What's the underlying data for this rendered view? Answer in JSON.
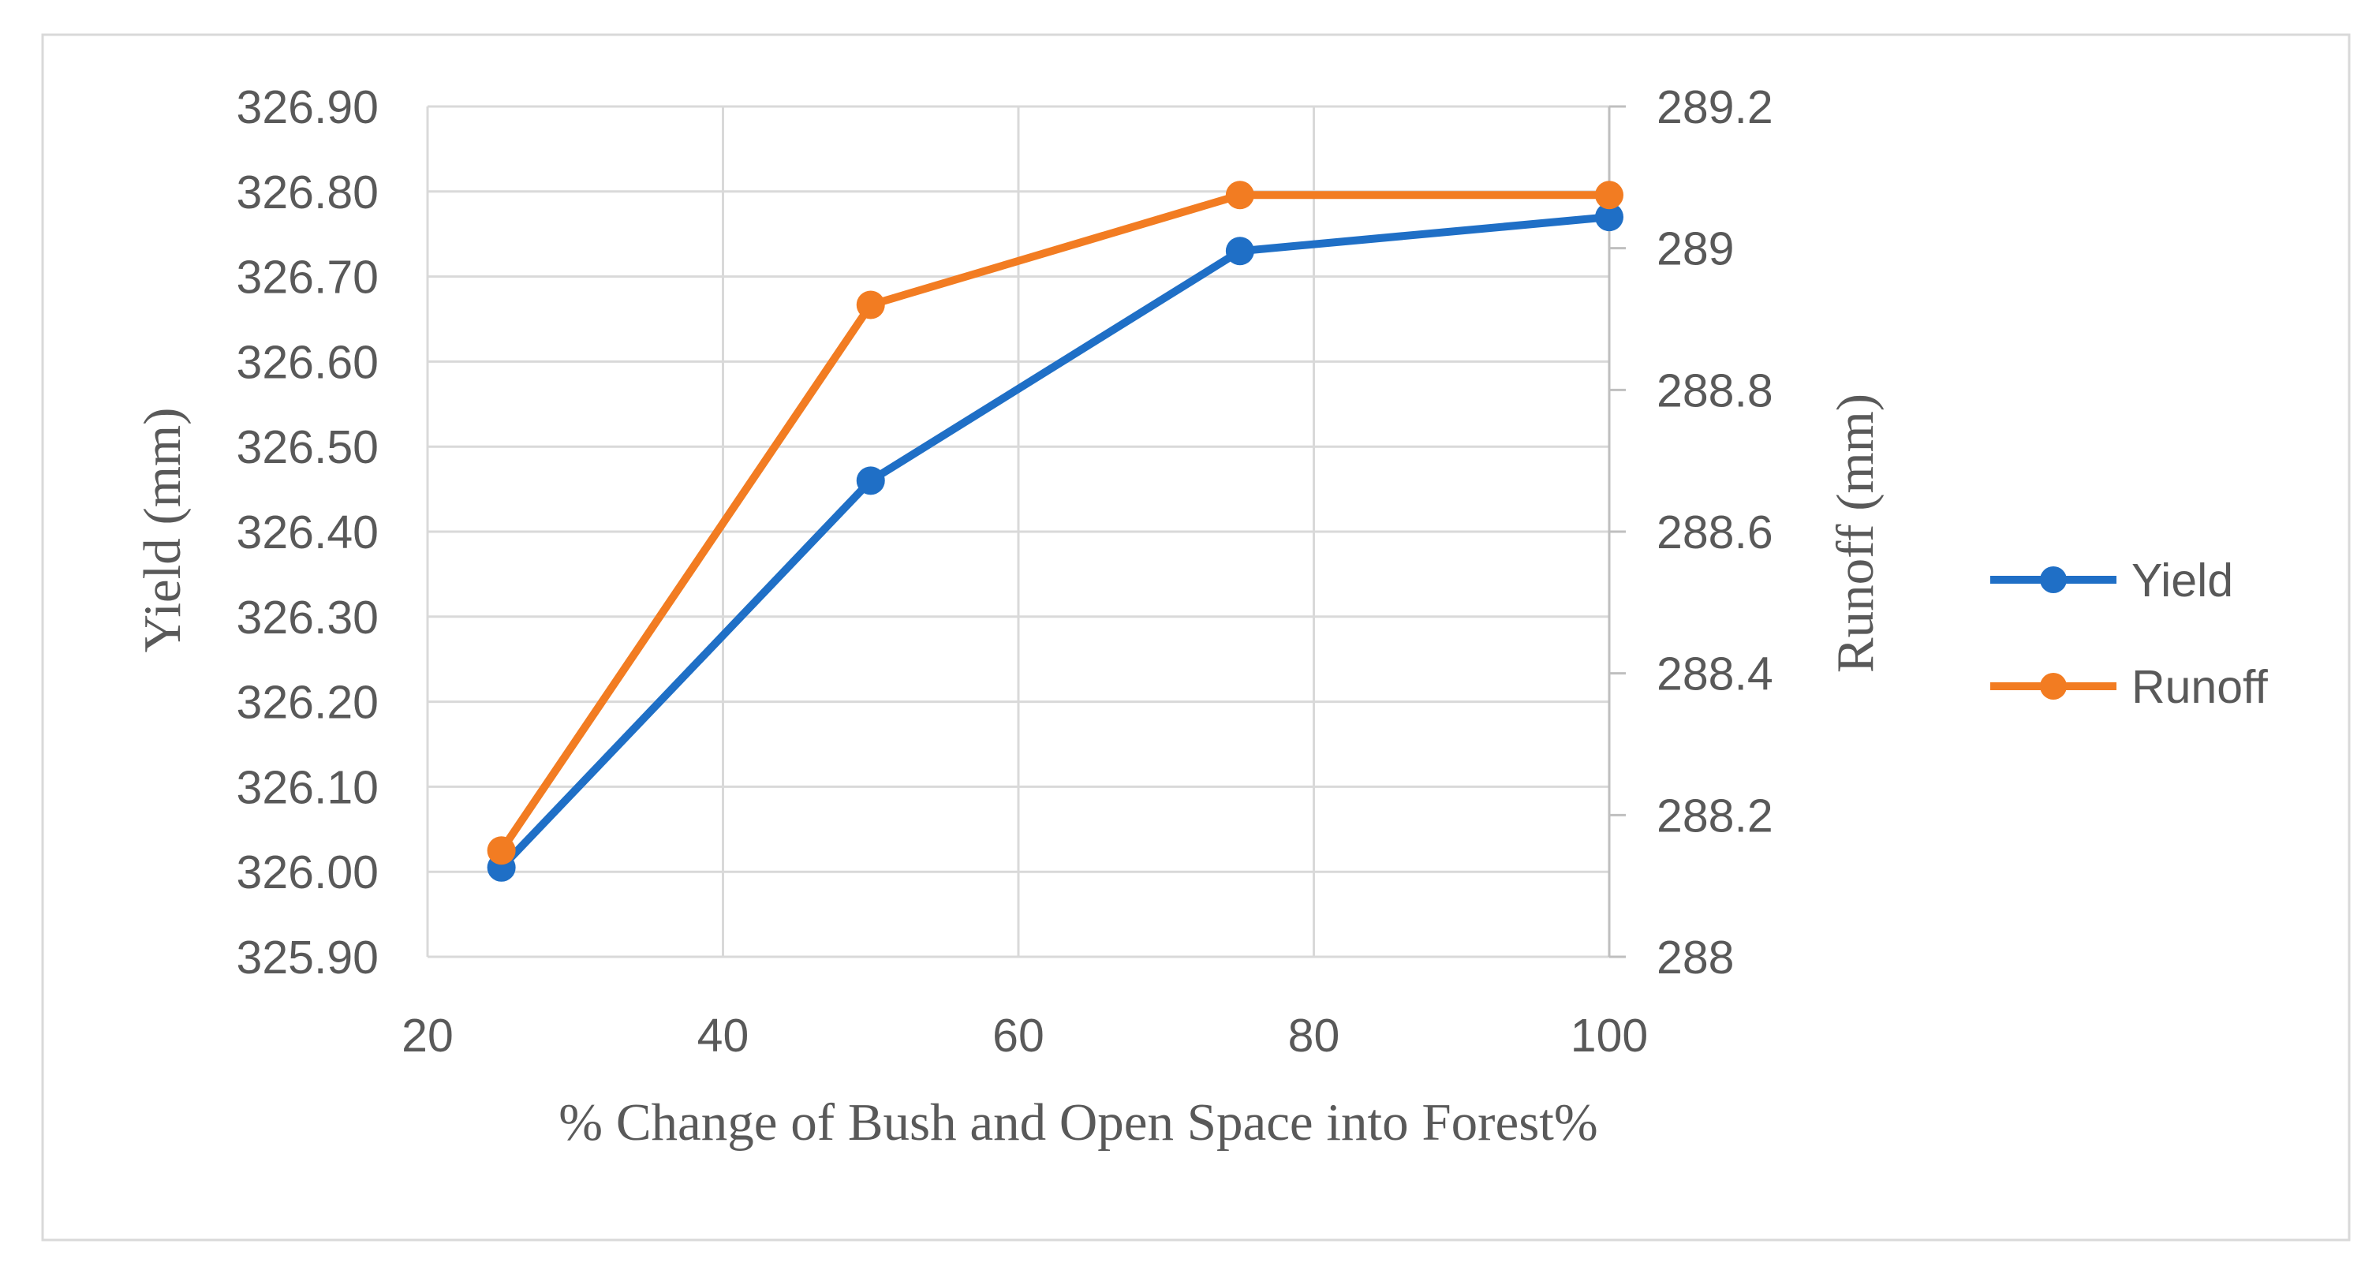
{
  "chart_data": {
    "type": "line",
    "title": "",
    "xlabel": "% Change of Bush and Open Space into Forest%",
    "ylabel_left": "Yield (mm)",
    "ylabel_right": "Runoff (mm)",
    "x": [
      25,
      50,
      75,
      100
    ],
    "xlim": [
      20,
      100
    ],
    "x_ticks": [
      "20",
      "40",
      "60",
      "80",
      "100"
    ],
    "ylim_left": [
      325.9,
      326.9
    ],
    "y_left_ticks": [
      "325.90",
      "326.00",
      "326.10",
      "326.20",
      "326.30",
      "326.40",
      "326.50",
      "326.60",
      "326.70",
      "326.80",
      "326.90"
    ],
    "ylim_right": [
      288,
      289.2
    ],
    "y_right_ticks": [
      "288",
      "288.2",
      "288.4",
      "288.6",
      "288.8",
      "289",
      "289.2"
    ],
    "grid": true,
    "legend_position": "right",
    "series": [
      {
        "name": "Yield",
        "axis": "left",
        "color": "#1f6fc6",
        "values": [
          326.005,
          326.46,
          326.73,
          326.77
        ]
      },
      {
        "name": "Runoff",
        "axis": "right",
        "color": "#f27c22",
        "values": [
          288.15,
          288.92,
          289.075,
          289.075
        ]
      }
    ]
  }
}
